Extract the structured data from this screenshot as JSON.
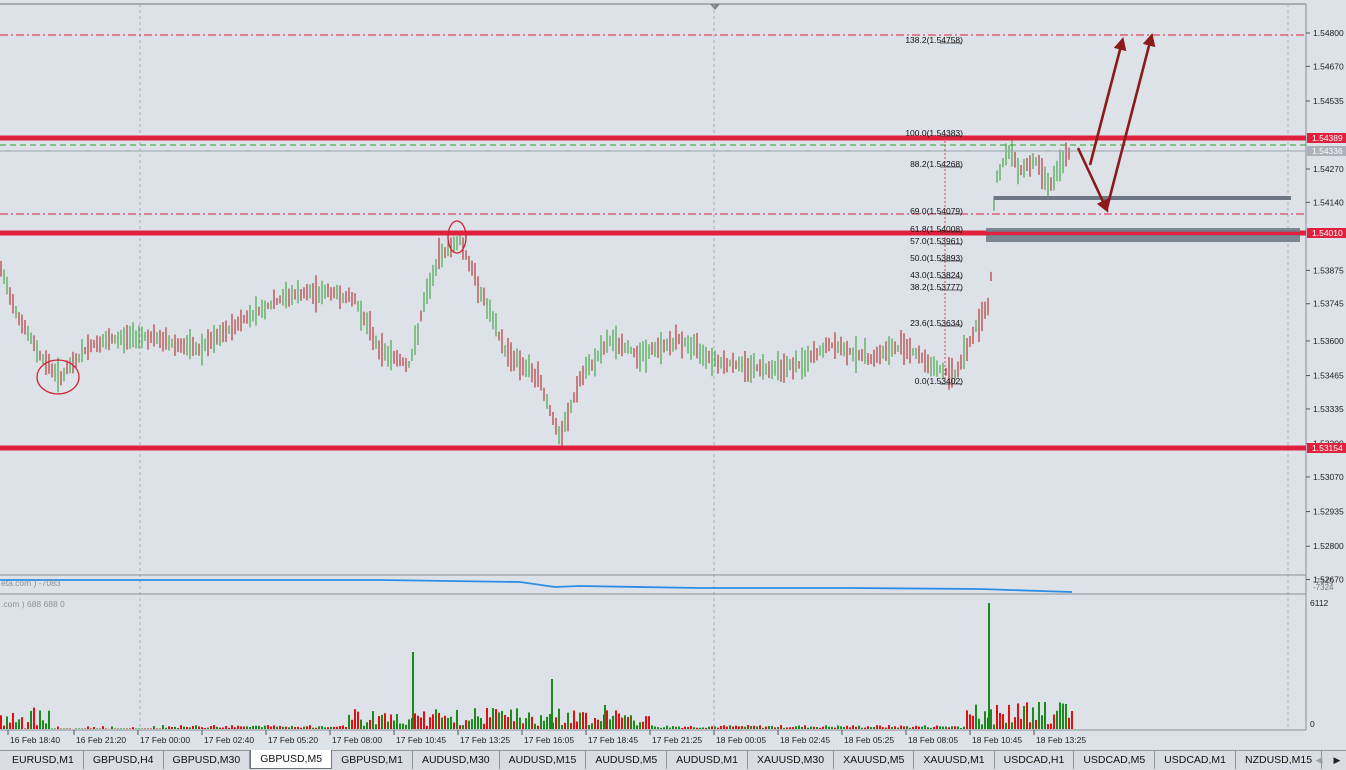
{
  "colors": {
    "background": "#dde2e9",
    "grid": "#a9b0b8",
    "support_resistance": "#e0203c",
    "fib": "#d0202f",
    "zone": "#6c7684",
    "arrow": "#8b1a1a",
    "indicator": "#2a8de8",
    "volume_up": "#1a8a1a",
    "volume_down": "#e01010",
    "price_bull": "#2a9a2a",
    "price_bear": "#b01818"
  },
  "price_axis": {
    "ticks": [
      "1.54800",
      "1.54670",
      "1.54535",
      "1.54270",
      "1.54140",
      "1.53875",
      "1.53745",
      "1.53600",
      "1.53465",
      "1.53335",
      "1.53200",
      "1.53070",
      "1.52935",
      "1.52800",
      "1.52670"
    ],
    "badges": [
      {
        "label": "1.54389",
        "color": "#e0203c"
      },
      {
        "label": "1.54336",
        "color": "#aab2bc"
      },
      {
        "label": "1.54010",
        "color": "#e0203c"
      },
      {
        "label": "1.53154",
        "color": "#e0203c"
      }
    ]
  },
  "time_axis": {
    "labels": [
      "16 Feb 18:40",
      "16 Feb 21:20",
      "17 Feb 00:00",
      "17 Feb 02:40",
      "17 Feb 05:20",
      "17 Feb 08:00",
      "17 Feb 10:45",
      "17 Feb 13:25",
      "17 Feb 16:05",
      "17 Feb 18:45",
      "17 Feb 21:25",
      "18 Feb 00:05",
      "18 Feb 02:45",
      "18 Feb 05:25",
      "18 Feb 08:05",
      "18 Feb 10:45",
      "18 Feb 13:25"
    ]
  },
  "fib_levels": [
    {
      "label": "138.2(1.54758)"
    },
    {
      "label": "100.0(1.54383)"
    },
    {
      "label": "88.2(1.54268)"
    },
    {
      "label": "69.0(1.54079)"
    },
    {
      "label": "61.8(1.54008)"
    },
    {
      "label": "57.0(1.53961)"
    },
    {
      "label": "50.0(1.53893)"
    },
    {
      "label": "43.0(1.53824)"
    },
    {
      "label": "38.2(1.53777)"
    },
    {
      "label": "23.6(1.53634)"
    },
    {
      "label": "0.0(1.53402)"
    }
  ],
  "indicator": {
    "label": "eta.com ) -7083",
    "axis_values": [
      "-7345",
      "-7324"
    ]
  },
  "volume": {
    "label": ".com ) 688 688 0",
    "axis_max": "6112",
    "axis_min": "0"
  },
  "tabs": [
    {
      "label": "EURUSD,M1"
    },
    {
      "label": "GBPUSD,H4"
    },
    {
      "label": "GBPUSD,M30"
    },
    {
      "label": "GBPUSD,M5",
      "active": true
    },
    {
      "label": "GBPUSD,M1"
    },
    {
      "label": "AUDUSD,M30"
    },
    {
      "label": "AUDUSD,M15"
    },
    {
      "label": "AUDUSD,M5"
    },
    {
      "label": "AUDUSD,M1"
    },
    {
      "label": "XAUUSD,M30"
    },
    {
      "label": "XAUUSD,M5"
    },
    {
      "label": "XAUUSD,M1"
    },
    {
      "label": "USDCAD,H1"
    },
    {
      "label": "USDCAD,M5"
    },
    {
      "label": "USDCAD,M1"
    },
    {
      "label": "NZDUSD,M15"
    }
  ],
  "tab_scroll": {
    "left_icon": "◀",
    "right_icon": "▶"
  }
}
